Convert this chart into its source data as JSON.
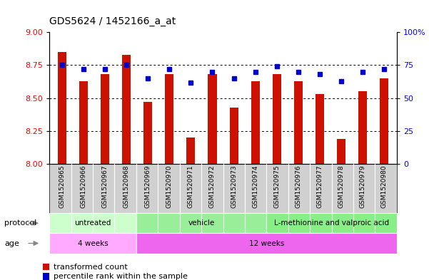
{
  "title": "GDS5624 / 1452166_a_at",
  "samples": [
    "GSM1520965",
    "GSM1520966",
    "GSM1520967",
    "GSM1520968",
    "GSM1520969",
    "GSM1520970",
    "GSM1520971",
    "GSM1520972",
    "GSM1520973",
    "GSM1520974",
    "GSM1520975",
    "GSM1520976",
    "GSM1520977",
    "GSM1520978",
    "GSM1520979",
    "GSM1520980"
  ],
  "transformed_count": [
    8.85,
    8.63,
    8.68,
    8.83,
    8.47,
    8.68,
    8.2,
    8.68,
    8.43,
    8.63,
    8.68,
    8.63,
    8.53,
    8.19,
    8.55,
    8.65
  ],
  "percentile_rank": [
    75,
    72,
    72,
    75,
    65,
    72,
    62,
    70,
    65,
    70,
    74,
    70,
    68,
    63,
    70,
    72
  ],
  "ylim_left": [
    8.0,
    9.0
  ],
  "ylim_right": [
    0,
    100
  ],
  "yticks_left": [
    8.0,
    8.25,
    8.5,
    8.75,
    9.0
  ],
  "yticks_right": [
    0,
    25,
    50,
    75,
    100
  ],
  "bar_color": "#cc1100",
  "dot_color": "#0000cc",
  "bg_color": "#ffffff",
  "protocol_labels": [
    "untreated",
    "vehicle",
    "L-methionine and valproic acid"
  ],
  "protocol_ranges": [
    [
      0,
      4
    ],
    [
      4,
      10
    ],
    [
      10,
      16
    ]
  ],
  "protocol_colors_light": [
    "#ccffcc",
    "#99ee99",
    "#88ee88"
  ],
  "age_labels": [
    "4 weeks",
    "12 weeks"
  ],
  "age_ranges": [
    [
      0,
      4
    ],
    [
      4,
      16
    ]
  ],
  "age_color_light": "#ffaaff",
  "age_color_dark": "#ee66ee",
  "legend_items": [
    "transformed count",
    "percentile rank within the sample"
  ],
  "legend_colors": [
    "#cc1100",
    "#0000cc"
  ],
  "bar_width": 0.4
}
